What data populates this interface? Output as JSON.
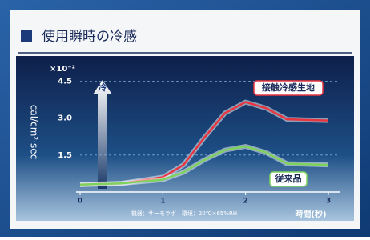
{
  "chart_data": {
    "type": "line",
    "title": "使用瞬時の冷感",
    "unit_label": "×10⁻²",
    "y_label": "cal/cm²·sec",
    "x_label": "時間(秒)",
    "icon_label": "冷",
    "note": "機器：サーモラボ　環境：20℃×65%RH",
    "x": [
      0,
      0.5,
      1,
      1.25,
      1.5,
      1.75,
      2,
      2.25,
      2.5,
      3
    ],
    "series": [
      {
        "name": "接触冷感生地",
        "color": "#e8353f",
        "values": [
          0.3,
          0.35,
          0.6,
          1.1,
          2.2,
          3.2,
          3.65,
          3.4,
          2.95,
          2.9
        ]
      },
      {
        "name": "従来品",
        "color": "#7fd35c",
        "values": [
          0.3,
          0.35,
          0.5,
          0.8,
          1.3,
          1.7,
          1.85,
          1.6,
          1.15,
          1.1
        ]
      }
    ],
    "xlim": [
      0,
      3
    ],
    "xticks": [
      0,
      1,
      2,
      3
    ],
    "ylim": [
      0,
      5
    ],
    "yticks": [
      1.5,
      {
        "value": 3,
        "label": "3.0"
      },
      {
        "value": 4.5,
        "label": "4.5"
      }
    ],
    "grid": true
  }
}
